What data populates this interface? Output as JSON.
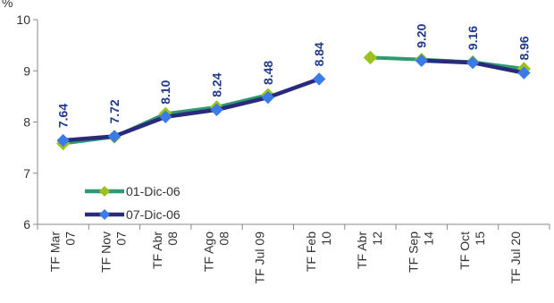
{
  "chart_data": {
    "type": "line",
    "ylabel": "%",
    "ylim": [
      6,
      10
    ],
    "yticks": [
      6,
      7,
      8,
      9,
      10
    ],
    "grid": false,
    "legend_position": "bottom-left",
    "categories": [
      [
        "TF Mar",
        "07"
      ],
      [
        "TF Nov",
        "07"
      ],
      [
        "TF Abr",
        "08"
      ],
      [
        "TF Ago",
        "08"
      ],
      [
        "TF Jul 09",
        ""
      ],
      [
        "TF Feb",
        "10"
      ],
      [
        "TF Abr",
        "12"
      ],
      [
        "TF Sep",
        "14"
      ],
      [
        "TF Oct",
        "15"
      ],
      [
        "TF Jul 20",
        ""
      ]
    ],
    "series": [
      {
        "name": "01-Dic-06",
        "color": "#2e9a6e",
        "marker_color": "#9bc31c",
        "values": [
          7.58,
          7.71,
          8.16,
          8.29,
          8.53,
          null,
          9.26,
          9.22,
          9.17,
          9.04
        ]
      },
      {
        "name": "07-Dic-06",
        "color": "#2a2a7c",
        "marker_color": "#3b7be8",
        "values": [
          7.64,
          7.72,
          8.1,
          8.24,
          8.48,
          8.84,
          null,
          9.2,
          9.16,
          8.96
        ]
      }
    ],
    "data_labels": [
      "7.64",
      "7.72",
      "8.10",
      "8.24",
      "8.48",
      "8.84",
      null,
      "9.20",
      "9.16",
      "8.96"
    ]
  }
}
